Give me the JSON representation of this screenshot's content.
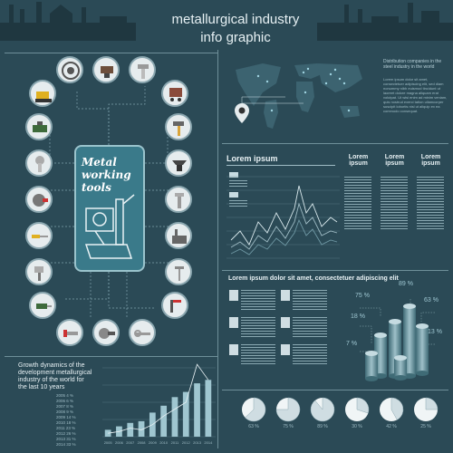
{
  "header": {
    "title_line1": "metallurgical industry",
    "title_line2": "info graphic"
  },
  "tools_panel": {
    "center_label_line1": "Metal working",
    "center_label_line2": "tools",
    "tool_icons": [
      "bearing-icon",
      "anvil-icon",
      "bolt-icon",
      "bulldozer-icon",
      "trolley-icon",
      "hammer-icon",
      "vise-icon",
      "anvil-2-icon",
      "screw-icon",
      "screw-2-icon",
      "grinder-icon",
      "factory-icon",
      "screwdriver-icon",
      "nail-icon",
      "spray-gun-icon",
      "hammer-2-icon",
      "drill-icon",
      "clamp-icon",
      "saw-icon",
      "angle-grinder-icon",
      "wrench-icon",
      "cutter-icon"
    ]
  },
  "map_panel": {
    "heading": "Distribution companies in the steel industry in the world",
    "body": "Lorem ipsum dolor sit amet, consectetuer adipiscing elit, sed diam nonummy nibh euismod tincidunt ut laoreet dolore magna aliquam erat volutpat. Ut wisi enim ad minim veniam, quis nostrud exerci tation ullamcorper suscipit lobortis nisl ut aliquip ex ea commodo consequat."
  },
  "line_chart_panel": {
    "title": "Lorem ipsum",
    "columns": [
      {
        "title_line1": "Lorem",
        "title_line2": "ipsum"
      },
      {
        "title_line1": "Lorem",
        "title_line2": "ipsum"
      },
      {
        "title_line1": "Lorem",
        "title_line2": "ipsum"
      }
    ]
  },
  "cylinder_panel": {
    "title": "Lorem ipsum dolor sit amet, consectetuer adipiscing elit",
    "percentages": [
      "75 %",
      "89 %",
      "18 %",
      "63 %",
      "7 %",
      "13 %"
    ]
  },
  "growth_panel": {
    "title_line1": "Growth dynamics of the",
    "title_line2": "development metallurgical",
    "title_line3": "industry of the world for",
    "title_line4": "the last 10 years",
    "legend": [
      "2005 4 %",
      "2006 6 %",
      "2007 8 %",
      "2008 9 %",
      "2009 14 %",
      "2010 18 %",
      "2011 23 %",
      "2012 26 %",
      "2013 31 %",
      "2014 33 %"
    ]
  },
  "chart_data": {
    "type": "bar",
    "categories": [
      "2005",
      "2006",
      "2007",
      "2008",
      "2009",
      "2010",
      "2011",
      "2012",
      "2013",
      "2014"
    ],
    "values": [
      4,
      6,
      8,
      9,
      14,
      18,
      23,
      26,
      31,
      33
    ],
    "line_values": [
      2,
      3,
      5,
      4,
      7,
      12,
      16,
      20,
      42,
      33
    ],
    "ylim": [
      0,
      40
    ]
  },
  "pies_panel": {
    "values": [
      "63 %",
      "75 %",
      "89 %",
      "30 %",
      "42 %",
      "25 %"
    ],
    "fractions": [
      0.63,
      0.75,
      0.89,
      0.3,
      0.42,
      0.25
    ]
  },
  "colors": {
    "background": "#2b4a56",
    "accent": "#3a7a8a",
    "light": "#e6ecee"
  }
}
